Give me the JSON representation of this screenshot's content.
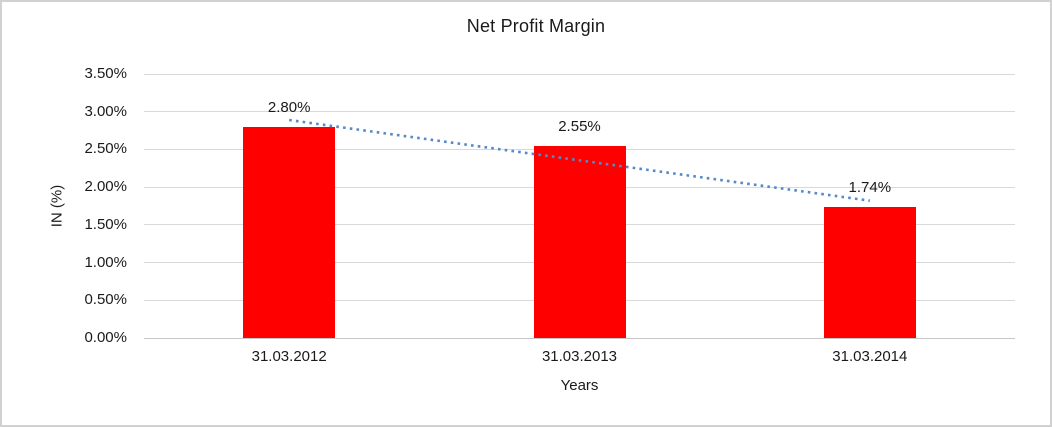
{
  "chart": {
    "title": "Net Profit Margin",
    "x_axis_title": "Years",
    "y_axis_title": "IN (%)"
  },
  "chart_data": {
    "type": "bar",
    "title": "Net Profit Margin",
    "xlabel": "Years",
    "ylabel": "IN (%)",
    "categories": [
      "31.03.2012",
      "31.03.2013",
      "31.03.2014"
    ],
    "values": [
      2.8,
      2.55,
      1.74
    ],
    "data_labels": [
      "2.80%",
      "2.55%",
      "1.74%"
    ],
    "y_ticks": [
      "0.00%",
      "0.50%",
      "1.00%",
      "1.50%",
      "2.00%",
      "2.50%",
      "3.00%",
      "3.50%"
    ],
    "ylim": [
      0,
      3.5
    ],
    "y_step": 0.5,
    "grid": true,
    "legend": "none",
    "bar_color": "#ff0000",
    "gridline_color": "#d9d9d9",
    "trendline": {
      "type": "linear",
      "style": "dotted",
      "color": "#5589c8",
      "start_value": 2.89,
      "end_value": 1.82
    }
  }
}
